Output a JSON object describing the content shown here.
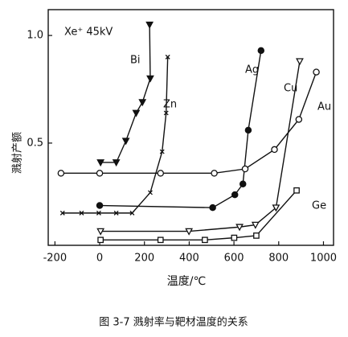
{
  "chart_data": {
    "type": "line",
    "annotation": "Xe⁺ 45kV",
    "xlabel": "温度/℃",
    "ylabel": "溅射产额",
    "caption": "图 3-7  溅射率与靶材温度的关系",
    "xlim": [
      -230,
      1045
    ],
    "ylim": [
      0.025,
      1.12
    ],
    "xticks": [
      -200,
      0,
      200,
      400,
      600,
      800,
      1000
    ],
    "yticks": [
      0.5,
      {
        "value": 1,
        "label": "1.0"
      }
    ],
    "series": [
      {
        "name": "Bi",
        "color": "#111111",
        "marker": "filled-triangle-down",
        "x": [
          4,
          74,
          117,
          163,
          191,
          226,
          223
        ],
        "values": [
          0.41,
          0.41,
          0.51,
          0.64,
          0.69,
          0.8,
          1.05
        ]
      },
      {
        "name": "Zn",
        "color": "#111111",
        "marker": "cross",
        "x": [
          -166,
          -81,
          -4,
          74,
          145,
          226,
          279,
          297,
          304
        ],
        "values": [
          0.175,
          0.175,
          0.175,
          0.175,
          0.175,
          0.27,
          0.46,
          0.64,
          0.9
        ]
      },
      {
        "name": "Ag",
        "color": "#111111",
        "marker": "filled-circle",
        "x": [
          0,
          505,
          604,
          640,
          664,
          721
        ],
        "values": [
          0.21,
          0.2,
          0.26,
          0.31,
          0.56,
          0.93
        ]
      },
      {
        "name": "Cu",
        "color": "#111111",
        "marker": "open-triangle-down",
        "x": [
          4,
          399,
          625,
          696,
          788,
          894
        ],
        "values": [
          0.09,
          0.09,
          0.11,
          0.12,
          0.2,
          0.88
        ]
      },
      {
        "name": "Au",
        "color": "#111111",
        "marker": "open-circle",
        "x": [
          -173,
          0,
          272,
          512,
          650,
          781,
          890,
          968
        ],
        "values": [
          0.36,
          0.36,
          0.36,
          0.36,
          0.38,
          0.47,
          0.61,
          0.83
        ]
      },
      {
        "name": "Ge",
        "color": "#111111",
        "marker": "open-square",
        "x": [
          4,
          272,
          470,
          601,
          700,
          880
        ],
        "values": [
          0.05,
          0.05,
          0.05,
          0.06,
          0.07,
          0.28
        ]
      }
    ]
  }
}
